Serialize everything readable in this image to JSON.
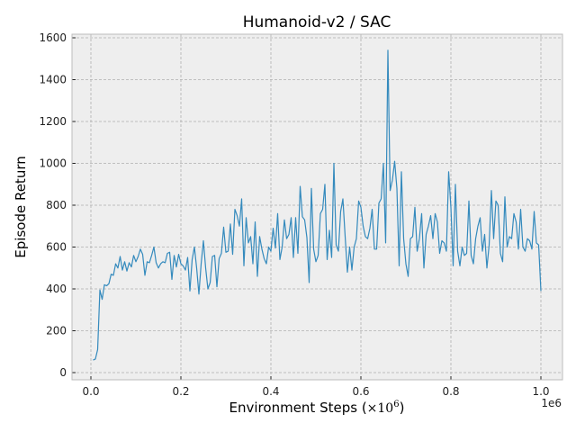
{
  "chart_data": {
    "type": "line",
    "title": "Humanoid-v2 / SAC",
    "xlabel": "Environment Steps (×10⁶)",
    "xlabel_main": "Environment Steps (",
    "xlabel_math": "×10",
    "xlabel_exp": "6",
    "xlabel_close": ")",
    "ylabel": "Episode Return",
    "x_offset_label": "1e6",
    "xlim": [
      -0.04,
      1.05
    ],
    "ylim": [
      -20,
      1620
    ],
    "xticks": [
      "0.0",
      "0.2",
      "0.4",
      "0.6",
      "0.8",
      "1.0"
    ],
    "xtick_values": [
      0.0,
      0.2,
      0.4,
      0.6,
      0.8,
      1.0
    ],
    "yticks": [
      "0",
      "200",
      "400",
      "600",
      "800",
      "1000",
      "1200",
      "1400",
      "1600"
    ],
    "ytick_values": [
      0,
      200,
      400,
      600,
      800,
      1000,
      1200,
      1400,
      1600
    ],
    "grid": true,
    "legend": null,
    "series": [
      {
        "name": "SAC",
        "color": "#348abd",
        "x": [
          0.005,
          0.01,
          0.015,
          0.02,
          0.025,
          0.03,
          0.035,
          0.04,
          0.045,
          0.05,
          0.055,
          0.06,
          0.065,
          0.07,
          0.075,
          0.08,
          0.085,
          0.09,
          0.095,
          0.1,
          0.105,
          0.11,
          0.115,
          0.12,
          0.125,
          0.13,
          0.135,
          0.14,
          0.145,
          0.15,
          0.155,
          0.16,
          0.165,
          0.17,
          0.175,
          0.18,
          0.185,
          0.19,
          0.195,
          0.2,
          0.205,
          0.21,
          0.215,
          0.22,
          0.225,
          0.23,
          0.235,
          0.24,
          0.245,
          0.25,
          0.255,
          0.26,
          0.265,
          0.27,
          0.275,
          0.28,
          0.285,
          0.29,
          0.295,
          0.3,
          0.305,
          0.31,
          0.315,
          0.32,
          0.325,
          0.33,
          0.335,
          0.34,
          0.345,
          0.35,
          0.355,
          0.36,
          0.365,
          0.37,
          0.375,
          0.38,
          0.385,
          0.39,
          0.395,
          0.4,
          0.405,
          0.41,
          0.415,
          0.42,
          0.425,
          0.43,
          0.435,
          0.44,
          0.445,
          0.45,
          0.455,
          0.46,
          0.465,
          0.47,
          0.475,
          0.48,
          0.485,
          0.49,
          0.495,
          0.5,
          0.505,
          0.51,
          0.515,
          0.52,
          0.525,
          0.53,
          0.535,
          0.54,
          0.545,
          0.55,
          0.555,
          0.56,
          0.565,
          0.57,
          0.575,
          0.58,
          0.585,
          0.59,
          0.595,
          0.6,
          0.605,
          0.61,
          0.615,
          0.62,
          0.625,
          0.63,
          0.635,
          0.64,
          0.645,
          0.65,
          0.655,
          0.66,
          0.665,
          0.67,
          0.675,
          0.68,
          0.685,
          0.69,
          0.695,
          0.7,
          0.705,
          0.71,
          0.715,
          0.72,
          0.725,
          0.73,
          0.735,
          0.74,
          0.745,
          0.75,
          0.755,
          0.76,
          0.765,
          0.77,
          0.775,
          0.78,
          0.785,
          0.79,
          0.795,
          0.8,
          0.805,
          0.81,
          0.815,
          0.82,
          0.825,
          0.83,
          0.835,
          0.84,
          0.845,
          0.85,
          0.855,
          0.86,
          0.865,
          0.87,
          0.875,
          0.88,
          0.885,
          0.89,
          0.895,
          0.9,
          0.905,
          0.91,
          0.915,
          0.92,
          0.925,
          0.93,
          0.935,
          0.94,
          0.945,
          0.95,
          0.955,
          0.96,
          0.965,
          0.97,
          0.975,
          0.98,
          0.985,
          0.99,
          0.995,
          1.0
        ],
        "values": [
          60,
          65,
          110,
          395,
          350,
          420,
          415,
          425,
          470,
          465,
          520,
          500,
          555,
          490,
          530,
          485,
          525,
          505,
          560,
          530,
          555,
          590,
          565,
          465,
          530,
          525,
          560,
          600,
          525,
          500,
          520,
          530,
          525,
          570,
          575,
          445,
          560,
          505,
          565,
          520,
          510,
          490,
          550,
          390,
          540,
          600,
          500,
          375,
          520,
          630,
          500,
          400,
          430,
          555,
          560,
          410,
          545,
          570,
          695,
          575,
          580,
          710,
          565,
          780,
          750,
          700,
          830,
          510,
          740,
          620,
          650,
          520,
          720,
          460,
          650,
          590,
          545,
          520,
          600,
          580,
          690,
          595,
          760,
          540,
          600,
          730,
          640,
          660,
          740,
          550,
          740,
          570,
          890,
          745,
          730,
          645,
          430,
          880,
          590,
          530,
          560,
          760,
          780,
          900,
          540,
          680,
          550,
          1000,
          610,
          580,
          770,
          830,
          650,
          480,
          600,
          490,
          600,
          640,
          820,
          790,
          700,
          650,
          640,
          690,
          780,
          590,
          590,
          810,
          830,
          1000,
          620,
          1540,
          870,
          920,
          1010,
          880,
          510,
          960,
          640,
          520,
          460,
          640,
          650,
          790,
          580,
          640,
          760,
          500,
          660,
          700,
          750,
          640,
          760,
          720,
          570,
          630,
          620,
          580,
          960,
          790,
          510,
          900,
          580,
          510,
          600,
          560,
          570,
          820,
          560,
          520,
          640,
          700,
          740,
          580,
          660,
          500,
          610,
          870,
          640,
          820,
          800,
          570,
          530,
          840,
          600,
          650,
          640,
          760,
          720,
          590,
          780,
          600,
          580,
          640,
          630,
          590,
          770,
          620,
          610,
          390
        ]
      }
    ]
  }
}
